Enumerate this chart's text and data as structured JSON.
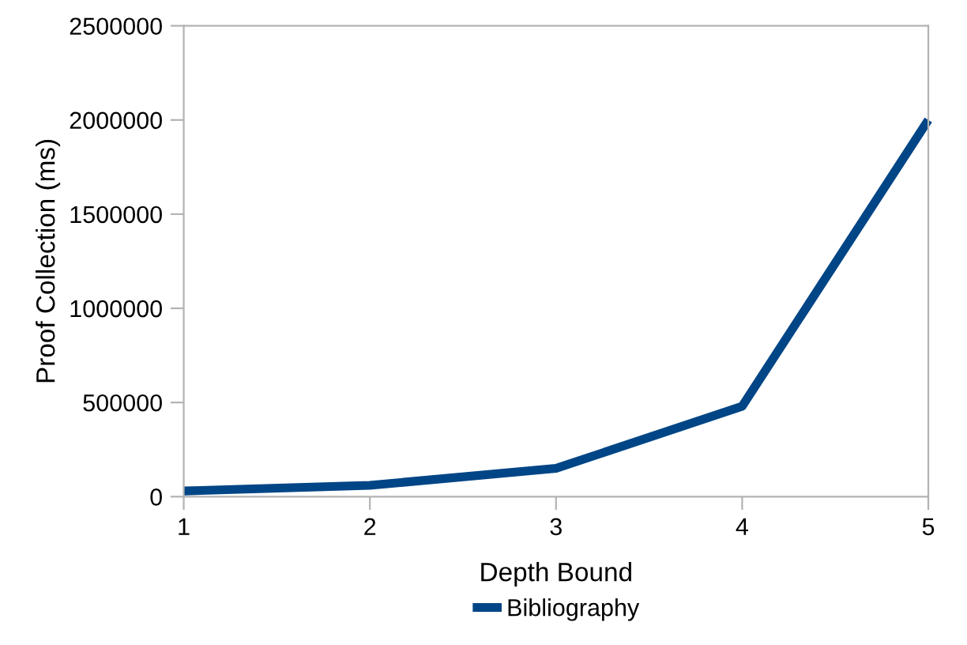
{
  "chart_data": {
    "type": "line",
    "xlabel": "Depth Bound",
    "ylabel": "Proof Collection (ms)",
    "x": [
      1,
      2,
      3,
      4,
      5
    ],
    "series": [
      {
        "name": "Bibliography",
        "color": "#004586",
        "values": [
          30000,
          60000,
          150000,
          480000,
          2000000
        ]
      }
    ],
    "xlim": [
      1,
      5
    ],
    "xticks": [
      1,
      2,
      3,
      4,
      5
    ],
    "ylim": [
      0,
      2500000
    ],
    "yticks": [
      0,
      500000,
      1000000,
      1500000,
      2000000,
      2500000
    ],
    "grid": false,
    "legend": "bottom",
    "marker": "none",
    "line_style": "solid"
  }
}
